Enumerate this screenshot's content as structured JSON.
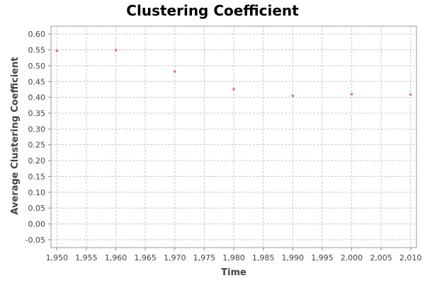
{
  "chart_data": {
    "type": "scatter",
    "title": "Clustering Coefficient",
    "xlabel": "Time",
    "ylabel": "Average Clustering Coefficient",
    "xlim": [
      1949,
      2011
    ],
    "ylim": [
      -0.075,
      0.625
    ],
    "x_ticks": [
      "1,950",
      "1,955",
      "1,960",
      "1,965",
      "1,970",
      "1,975",
      "1,980",
      "1,985",
      "1,990",
      "1,995",
      "2,000",
      "2,005",
      "2,010"
    ],
    "y_ticks": [
      "-0.05",
      "0.00",
      "0.05",
      "0.10",
      "0.15",
      "0.20",
      "0.25",
      "0.30",
      "0.35",
      "0.40",
      "0.45",
      "0.50",
      "0.55",
      "0.60"
    ],
    "grid": true,
    "point_color": "#e8645a",
    "series": [
      {
        "x": [
          1950,
          1960,
          1970,
          1980,
          1990,
          2000,
          2010
        ],
        "y": [
          0.547,
          0.549,
          0.482,
          0.426,
          0.405,
          0.41,
          0.409
        ]
      }
    ]
  }
}
